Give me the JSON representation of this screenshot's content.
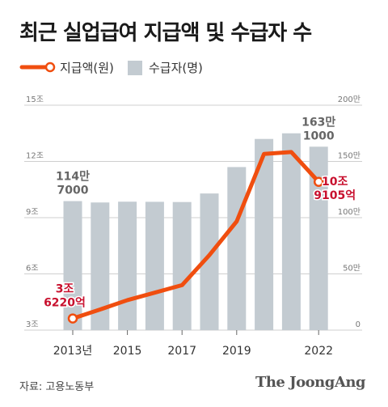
{
  "title": "최근 실업급여 지급액 및 수급자 수",
  "legend": {
    "line_label": "지급액(원)",
    "bar_label": "수급자(명)"
  },
  "source": "자료: 고용노동부",
  "brand": "The JoongAng",
  "colors": {
    "line": "#f04e0f",
    "bar": "#c3cbd1",
    "annotation": "#c8102e",
    "grid": "#cfcfcf",
    "axis_text": "#777777"
  },
  "chart_data": {
    "type": "bar",
    "x": [
      2013,
      2014,
      2015,
      2016,
      2017,
      2018,
      2019,
      2020,
      2021,
      2022
    ],
    "x_tick_labels": [
      {
        "x": 2013,
        "label": "2013년"
      },
      {
        "x": 2015,
        "label": "2015"
      },
      {
        "x": 2017,
        "label": "2017"
      },
      {
        "x": 2019,
        "label": "2019"
      },
      {
        "x": 2022,
        "label": "2022"
      }
    ],
    "left_axis": {
      "ylim": [
        3,
        15
      ],
      "ticks": [
        3,
        6,
        9,
        12,
        15
      ],
      "tick_labels": [
        "3조",
        "6조",
        "9조",
        "12조",
        "15조"
      ]
    },
    "right_axis": {
      "ylim": [
        0,
        200
      ],
      "ticks": [
        0,
        50,
        100,
        150,
        200
      ],
      "tick_labels": [
        "0",
        "50만",
        "100만",
        "150만",
        "200만"
      ]
    },
    "series": [
      {
        "name": "수급자(명)",
        "type": "bar",
        "axis": "right",
        "unit": "만 명",
        "values": [
          114.7,
          113.5,
          114.2,
          114.1,
          113.9,
          121.5,
          145.0,
          170.0,
          175.0,
          163.1
        ]
      },
      {
        "name": "지급액(원)",
        "type": "line",
        "axis": "left",
        "unit": "조 원",
        "values": [
          3.622,
          4.1,
          4.6,
          5.0,
          5.4,
          7.0,
          8.8,
          12.4,
          12.5,
          10.91
        ]
      }
    ],
    "annotations": [
      {
        "series": "수급자(명)",
        "x": 2013,
        "lines": [
          "114만",
          "7000"
        ]
      },
      {
        "series": "수급자(명)",
        "x": 2022,
        "lines": [
          "163만",
          "1000"
        ]
      },
      {
        "series": "지급액(원)",
        "x": 2013,
        "lines": [
          "3조",
          "6220억"
        ]
      },
      {
        "series": "지급액(원)",
        "x": 2022,
        "lines": [
          "10조",
          "9105억"
        ]
      }
    ]
  }
}
